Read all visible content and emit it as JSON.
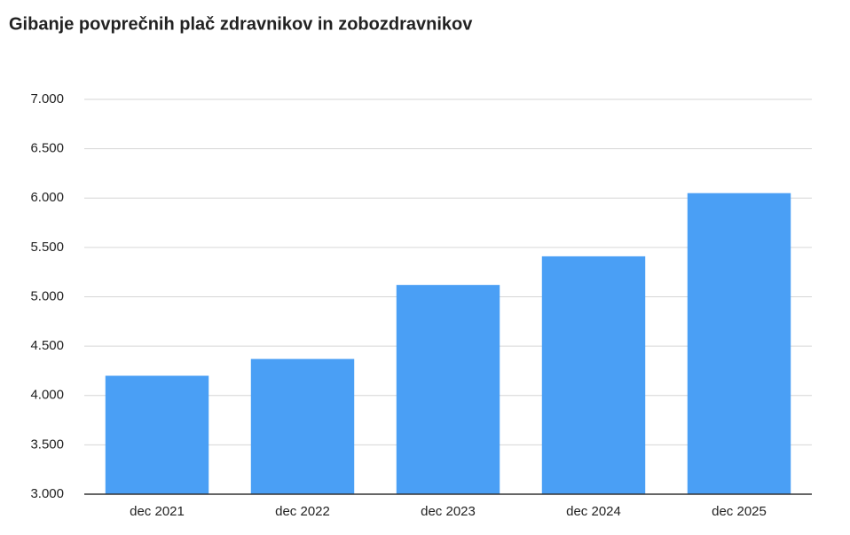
{
  "chart_data": {
    "type": "bar",
    "title": "Gibanje povprečnih plač zdravnikov in zobozdravnikov",
    "categories": [
      "dec 2021",
      "dec 2022",
      "dec 2023",
      "dec 2024",
      "dec 2025"
    ],
    "values": [
      4200,
      4370,
      5120,
      5410,
      6050
    ],
    "color": "#4a9ff5",
    "ylim": [
      3000,
      7000
    ],
    "yticks": [
      {
        "value": 3000,
        "label": "3.000"
      },
      {
        "value": 3500,
        "label": "3.500"
      },
      {
        "value": 4000,
        "label": "4.000"
      },
      {
        "value": 4500,
        "label": "4.500"
      },
      {
        "value": 5000,
        "label": "5.000"
      },
      {
        "value": 5500,
        "label": "5.500"
      },
      {
        "value": 6000,
        "label": "6.000"
      },
      {
        "value": 6500,
        "label": "6.500"
      },
      {
        "value": 7000,
        "label": "7.000"
      }
    ],
    "grid": true
  }
}
